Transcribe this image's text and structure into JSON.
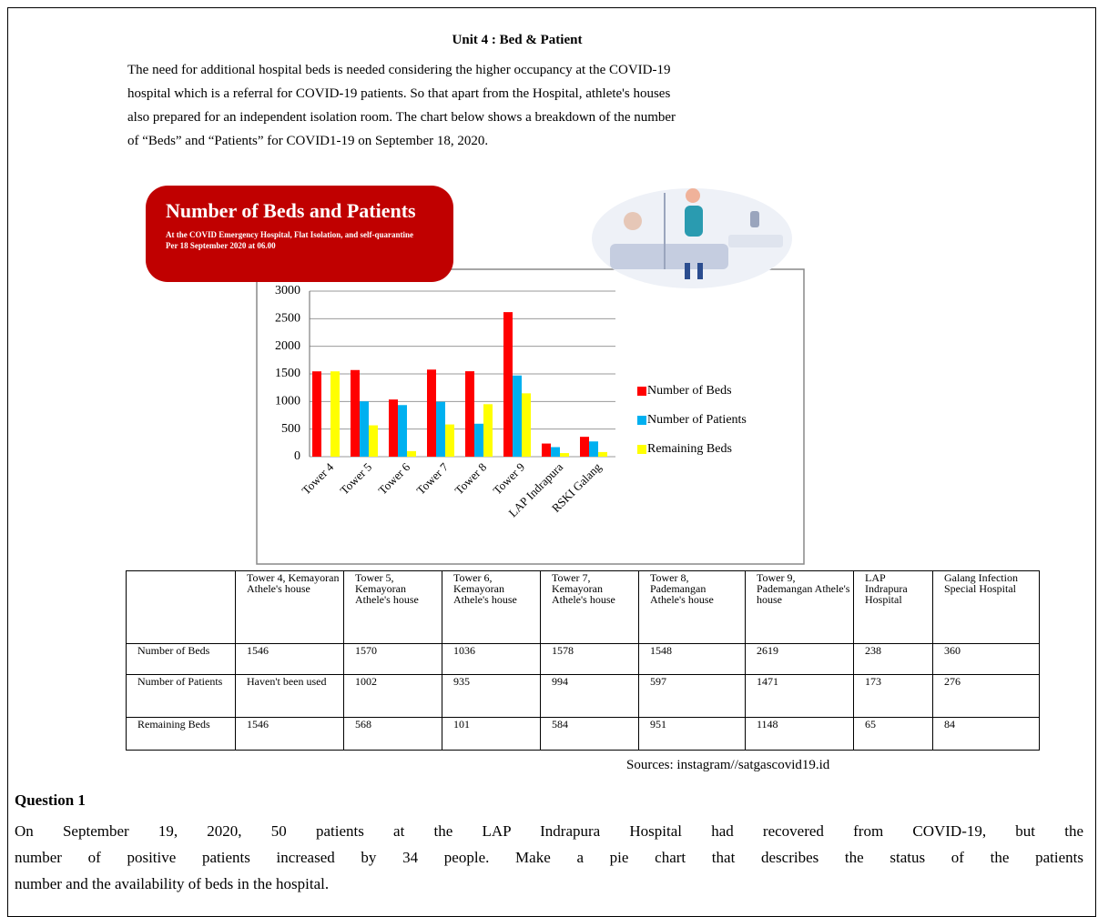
{
  "header": {
    "title": "Unit 4 : Bed & Patient"
  },
  "intro": {
    "lines": [
      "The need for additional hospital beds is needed considering the higher occupancy at the COVID-19",
      "hospital which is a referral for COVID-19 patients. So that apart from the Hospital, athlete's houses",
      "also prepared for an independent isolation room. The chart below shows a breakdown of the number",
      "of “Beds” and “Patients” for COVID1-19 on September 18, 2020."
    ]
  },
  "chart_data": {
    "type": "bar",
    "title": "Number of Beds and Patients",
    "subtitle": [
      "At the COVID Emergency Hospital, Flat Isolation, and self-quarantine",
      "Per 18 September 2020 at 06.00"
    ],
    "categories": [
      "Tower 4",
      "Tower 5",
      "Tower 6",
      "Tower 7",
      "Tower 8",
      "Tower 9",
      "LAP Indrapura",
      "RSKI Galang"
    ],
    "series": [
      {
        "name": "Number of Beds",
        "color": "#ff0000",
        "values": [
          1546,
          1570,
          1036,
          1578,
          1548,
          2619,
          238,
          360
        ]
      },
      {
        "name": "Number of Patients",
        "color": "#00b0f0",
        "values": [
          null,
          1002,
          935,
          994,
          597,
          1471,
          173,
          276
        ]
      },
      {
        "name": "Remaining Beds",
        "color": "#ffff00",
        "values": [
          1546,
          568,
          101,
          584,
          951,
          1148,
          65,
          84
        ]
      }
    ],
    "ylim": [
      0,
      3000
    ],
    "yticks": [
      0,
      500,
      1000,
      1500,
      2000,
      2500,
      3000
    ],
    "grid": true,
    "legend": "right"
  },
  "table": {
    "header": [
      "Tower 4, Kemayoran Athele's house",
      "Tower 5, Kemayoran Athele's house",
      "Tower 6, Kemayoran Athele's house",
      "Tower 7, Kemayoran Athele's house",
      "Tower 8, Pademangan Athele's house",
      "Tower 9, Pademangan Athele's house",
      "LAP Indrapura Hospital",
      "Galang Infection Special Hospital"
    ],
    "rows": [
      [
        "Number of Beds",
        "1546",
        "1570",
        "1036",
        "1578",
        "1548",
        "2619",
        "238",
        "360"
      ],
      [
        "Number of Patients",
        "Haven't been used",
        "1002",
        "935",
        "994",
        "597",
        "1471",
        "173",
        "276"
      ],
      [
        "Remaining Beds",
        "1546",
        "568",
        "101",
        "584",
        "951",
        "1148",
        "65",
        "84"
      ]
    ]
  },
  "source": "Sources: instagram//satgascovid19.id",
  "question": {
    "title": "Question 1",
    "lines": [
      "On September 19, 2020, 50 patients at the LAP Indrapura Hospital had recovered from COVID-19, but the",
      "number of positive patients increased by 34 people. Make a pie chart that describes the status of the patients",
      "number and the availability of beds in the hospital."
    ]
  }
}
